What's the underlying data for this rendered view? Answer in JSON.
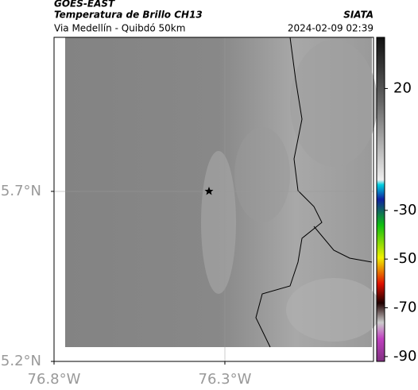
{
  "header": {
    "satellite": "GOES-EAST",
    "title": "Temperatura de Brillo CH13",
    "subtitle": "Via Medellín - Quibdó 50km",
    "source": "SIATA",
    "datetime": "2024-02-09 02:39"
  },
  "map": {
    "xlim": [
      -76.8,
      -75.865
    ],
    "ylim": [
      5.2,
      6.153
    ],
    "xticks": [
      {
        "value": -76.8,
        "label": "76.8°W"
      },
      {
        "value": -76.3,
        "label": "76.3°W"
      }
    ],
    "yticks": [
      {
        "value": 5.7,
        "label": "5.7°N"
      },
      {
        "value": 5.2,
        "label": "5.2°N"
      }
    ]
  },
  "colorbar": {
    "lim": [
      -92,
      41
    ],
    "ticks": [
      20,
      -30,
      -50,
      -70,
      -90
    ]
  }
}
